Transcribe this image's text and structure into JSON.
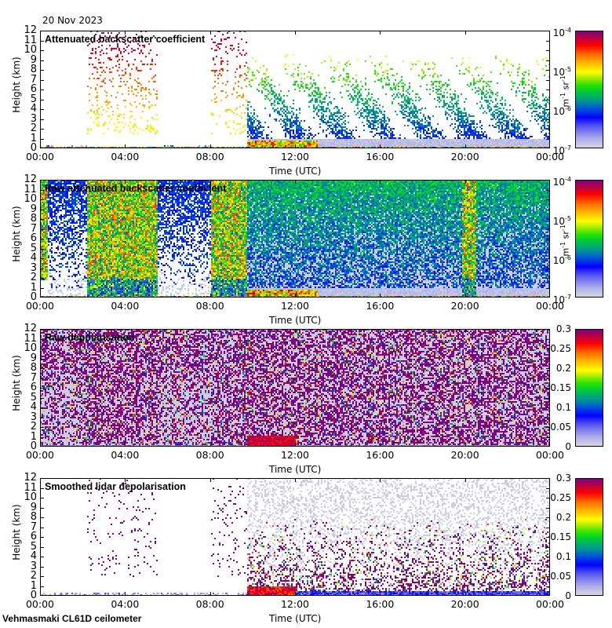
{
  "header": {
    "date": "20 Nov 2023"
  },
  "footer": {
    "instrument": "Vehmasmaki CL61D ceilometer"
  },
  "chart_data": [
    {
      "type": "heatmap",
      "title": "Attenuated backscatter coefficient",
      "xlabel": "Time (UTC)",
      "ylabel": "Height (km)",
      "x_ticks": [
        "00:00",
        "04:00",
        "08:00",
        "12:00",
        "16:00",
        "20:00",
        "00:00"
      ],
      "xlim_hours": [
        0,
        24
      ],
      "y_ticks": [
        "0",
        "1",
        "2",
        "3",
        "4",
        "5",
        "6",
        "7",
        "8",
        "9",
        "10",
        "11",
        "12"
      ],
      "ylim": [
        0,
        12
      ],
      "colorbar": {
        "scale": "log",
        "range": [
          1e-07,
          0.0001
        ],
        "ticks": [
          "10-7",
          "10-6",
          "10-5",
          "10-4"
        ],
        "unit": "m-1 sr-1"
      },
      "features": {
        "sparse_high_signal_hours": [
          [
            2.2,
            5.5
          ],
          [
            8.0,
            9.7
          ]
        ],
        "dense_aerosol_layer_start_hour": 9.7,
        "low_cloud_hours": [
          [
            9.7,
            13.0
          ]
        ]
      }
    },
    {
      "type": "heatmap",
      "title": "Raw attenuated backscatter coefficient",
      "xlabel": "Time (UTC)",
      "ylabel": "Height (km)",
      "x_ticks": [
        "00:00",
        "04:00",
        "08:00",
        "12:00",
        "16:00",
        "20:00",
        "00:00"
      ],
      "xlim_hours": [
        0,
        24
      ],
      "y_ticks": [
        "0",
        "1",
        "2",
        "3",
        "4",
        "5",
        "6",
        "7",
        "8",
        "9",
        "10",
        "11",
        "12"
      ],
      "ylim": [
        0,
        12
      ],
      "colorbar": {
        "scale": "log",
        "range": [
          1e-07,
          0.0001
        ],
        "ticks": [
          "10-7",
          "10-6",
          "10-5",
          "10-4"
        ],
        "unit": "m-1 sr-1"
      },
      "features": {
        "high_noise_hours": [
          [
            0,
            0.3
          ],
          [
            2.2,
            5.5
          ],
          [
            8.0,
            9.7
          ],
          [
            19.8,
            20.5
          ]
        ]
      }
    },
    {
      "type": "heatmap",
      "title": "Raw depolarisation",
      "xlabel": "Time (UTC)",
      "ylabel": "Height (km)",
      "x_ticks": [
        "00:00",
        "04:00",
        "08:00",
        "12:00",
        "16:00",
        "20:00",
        "00:00"
      ],
      "xlim_hours": [
        0,
        24
      ],
      "y_ticks": [
        "0",
        "1",
        "2",
        "3",
        "4",
        "5",
        "6",
        "7",
        "8",
        "9",
        "10",
        "11",
        "12"
      ],
      "ylim": [
        0,
        12
      ],
      "colorbar": {
        "scale": "linear",
        "range": [
          0,
          0.3
        ],
        "ticks": [
          "0",
          "0.05",
          "0.1",
          "0.15",
          "0.2",
          "0.25",
          "0.3"
        ],
        "unit": ""
      }
    },
    {
      "type": "heatmap",
      "title": "Smoothed lidar depolarisation",
      "xlabel": "Time (UTC)",
      "ylabel": "Height (km)",
      "x_ticks": [
        "00:00",
        "04:00",
        "08:00",
        "12:00",
        "16:00",
        "20:00",
        "00:00"
      ],
      "xlim_hours": [
        0,
        24
      ],
      "y_ticks": [
        "0",
        "1",
        "2",
        "3",
        "4",
        "5",
        "6",
        "7",
        "8",
        "9",
        "10",
        "11",
        "12"
      ],
      "ylim": [
        0,
        12
      ],
      "colorbar": {
        "scale": "linear",
        "range": [
          0,
          0.3
        ],
        "ticks": [
          "0",
          "0.05",
          "0.1",
          "0.15",
          "0.2",
          "0.25",
          "0.3"
        ],
        "unit": ""
      }
    }
  ]
}
